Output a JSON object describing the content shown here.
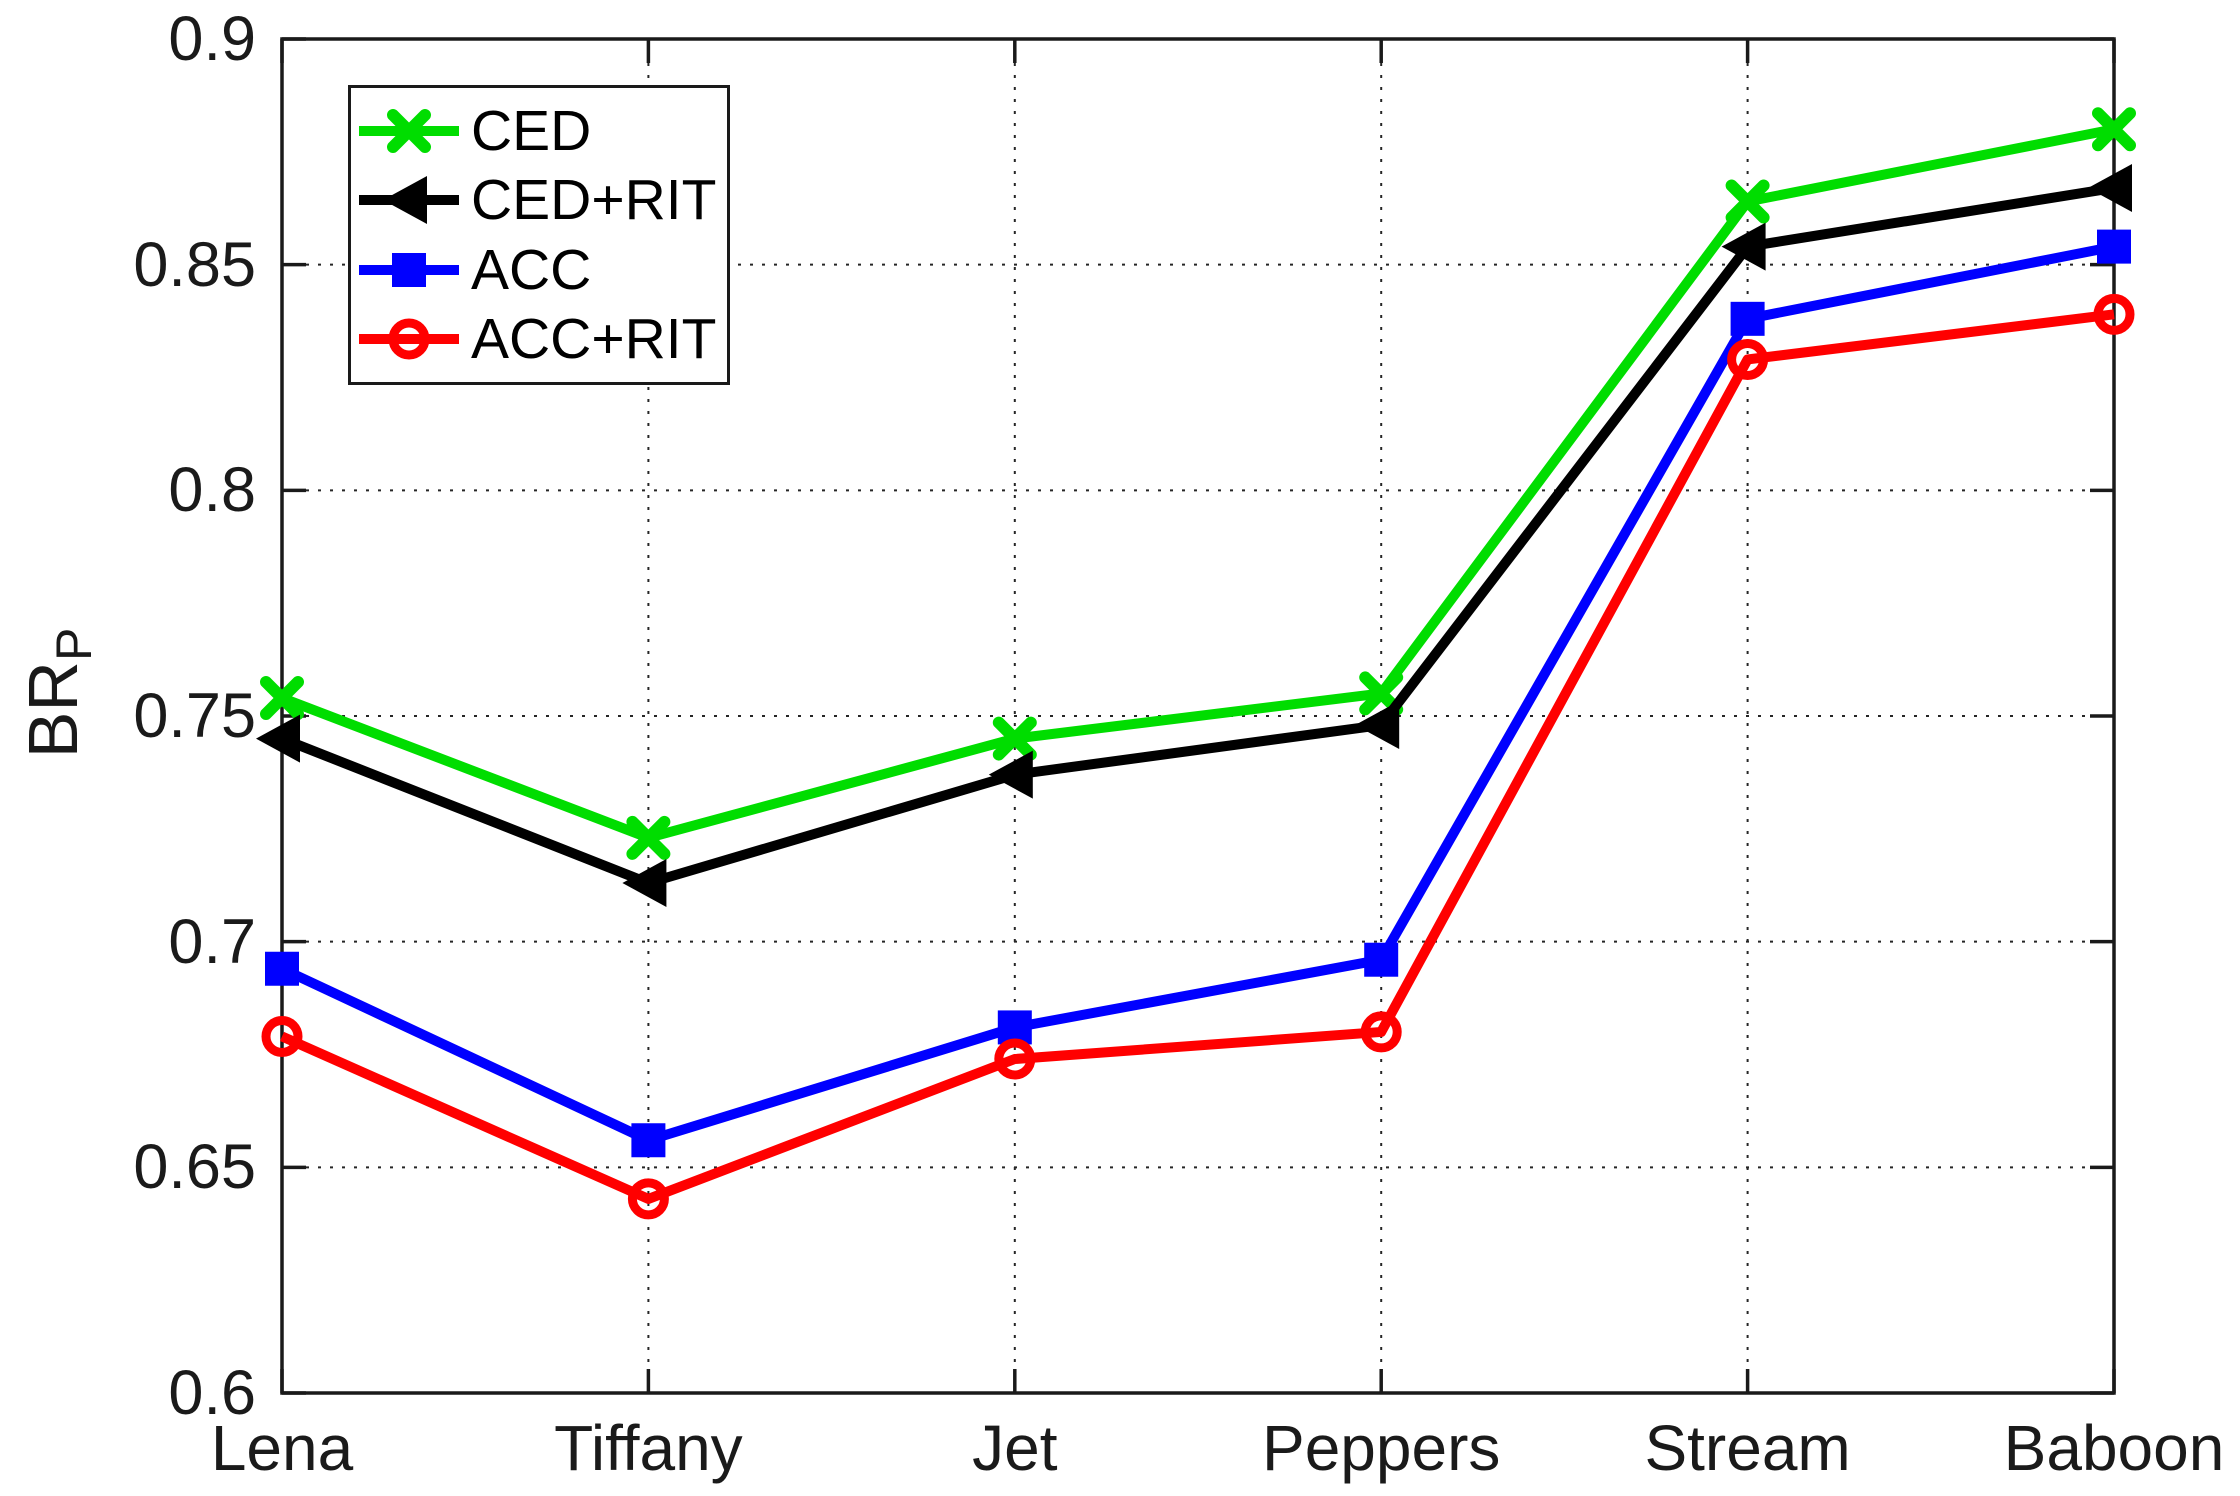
{
  "chart_data": {
    "type": "line",
    "title": "",
    "xlabel": "",
    "ylabel": {
      "text": "BR",
      "subscript": "P"
    },
    "categories": [
      "Lena",
      "Tiffany",
      "Jet",
      "Peppers",
      "Stream",
      "Baboon"
    ],
    "ylim": [
      0.6,
      0.9
    ],
    "yticks": [
      0.6,
      0.65,
      0.7,
      0.75,
      0.8,
      0.85,
      0.9
    ],
    "ytick_labels": [
      "0.6",
      "0.65",
      "0.7",
      "0.75",
      "0.8",
      "0.85",
      "0.9"
    ],
    "grid": true,
    "legend_position": "top-left",
    "series": [
      {
        "name": "CED",
        "color": "#00dd00",
        "marker": "x",
        "values": [
          0.754,
          0.723,
          0.745,
          0.755,
          0.864,
          0.88
        ]
      },
      {
        "name": "CED+RIT",
        "color": "#000000",
        "marker": "triangle-left",
        "values": [
          0.745,
          0.713,
          0.737,
          0.748,
          0.854,
          0.867
        ]
      },
      {
        "name": "ACC",
        "color": "#0000ff",
        "marker": "square",
        "values": [
          0.694,
          0.656,
          0.681,
          0.696,
          0.838,
          0.854
        ]
      },
      {
        "name": "ACC+RIT",
        "color": "#ff0000",
        "marker": "circle",
        "values": [
          0.679,
          0.643,
          0.674,
          0.68,
          0.829,
          0.839
        ]
      }
    ],
    "style": {
      "background": "#ffffff",
      "axis_color": "#1a1a1a",
      "grid_color": "#262626",
      "tick_label_color": "#1a1a1a"
    }
  }
}
